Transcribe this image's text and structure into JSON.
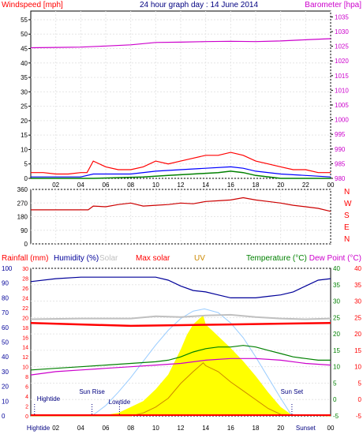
{
  "header": {
    "left_title": "Windspeed [mph]",
    "center_title": "24 hour graph day : 14 June 2014",
    "right_title": "Barometer [hpa]"
  },
  "colors": {
    "wind": "#ff0000",
    "wind_avg": "#0000ff",
    "wind_green": "#008000",
    "barometer": "#cc00cc",
    "humidity": "#000099",
    "solar_max": "#c0c0c0",
    "temperature": "#008000",
    "dew": "#cc00cc",
    "uv": "#ffff00",
    "uv_label": "#cc8800",
    "rain": "#ff0000",
    "sun_curve": "#99ccff",
    "tide": "#000080"
  },
  "chart_data": [
    {
      "type": "line",
      "name": "wind and barometer",
      "x_ticks": [
        "02",
        "04",
        "06",
        "08",
        "10",
        "12",
        "14",
        "16",
        "18",
        "20",
        "22",
        "00"
      ],
      "y_left_ticks": [
        "0",
        "5",
        "10",
        "15",
        "20",
        "25",
        "30",
        "35",
        "40",
        "45",
        "50",
        "55"
      ],
      "y_right_ticks": [
        "980",
        "985",
        "990",
        "995",
        "1000",
        "1005",
        "1010",
        "1015",
        "1020",
        "1025",
        "1030",
        "1035"
      ],
      "ylim_left": [
        0,
        58
      ],
      "ylim_right": [
        980,
        1037
      ],
      "xlim": [
        0,
        24
      ],
      "barometer": {
        "x": [
          0,
          2,
          4,
          6,
          8,
          10,
          12,
          14,
          16,
          18,
          20,
          22,
          24
        ],
        "y": [
          1024.5,
          1024.6,
          1024.7,
          1025.1,
          1025.5,
          1026.3,
          1026.4,
          1026.6,
          1026.7,
          1026.6,
          1026.8,
          1027.2,
          1027.6
        ]
      },
      "wind_gust": {
        "x": [
          0,
          1,
          2,
          3,
          4,
          4.5,
          5,
          6,
          7,
          8,
          9,
          10,
          11,
          12,
          13,
          14,
          15,
          16,
          17,
          18,
          19,
          20,
          21,
          22,
          23,
          24
        ],
        "y": [
          2,
          2,
          1.5,
          1.5,
          2,
          2,
          6,
          4,
          3,
          3,
          4,
          6,
          5,
          6,
          7,
          8,
          8,
          9,
          8,
          6,
          5,
          4,
          3,
          3,
          2,
          2
        ]
      },
      "wind_avg": {
        "x": [
          0,
          2,
          4,
          5,
          6,
          8,
          10,
          12,
          14,
          16,
          17,
          18,
          20,
          22,
          24
        ],
        "y": [
          0.5,
          0.5,
          0.5,
          1.5,
          1.5,
          1.5,
          2.5,
          3,
          3.5,
          4,
          3.5,
          2.5,
          1.5,
          1,
          0.5
        ]
      },
      "wind_green": {
        "x": [
          0,
          5,
          9,
          11,
          13,
          15,
          16,
          17,
          18,
          20,
          24
        ],
        "y": [
          0,
          0,
          0.5,
          1,
          1.5,
          2,
          2.5,
          2,
          1,
          0,
          0
        ]
      }
    },
    {
      "type": "line",
      "name": "wind direction",
      "x_ticks": [
        "02",
        "04",
        "06",
        "08",
        "10",
        "12",
        "14",
        "16",
        "18",
        "20",
        "22",
        "00"
      ],
      "y_ticks": [
        "0",
        "90",
        "180",
        "270",
        "360"
      ],
      "compass_labels": [
        "N",
        "W",
        "S",
        "E",
        "N"
      ],
      "ylim": [
        0,
        360
      ],
      "xlim": [
        0,
        24
      ],
      "series": {
        "x": [
          0,
          2,
          4,
          4.6,
          5,
          6,
          7,
          8,
          9,
          10,
          11,
          12,
          13,
          14,
          15,
          16,
          17,
          18,
          19,
          20,
          21,
          22,
          23,
          24
        ],
        "y": [
          225,
          225,
          225,
          225,
          250,
          245,
          260,
          270,
          250,
          255,
          260,
          270,
          265,
          280,
          285,
          290,
          305,
          290,
          280,
          270,
          255,
          245,
          235,
          215
        ]
      }
    },
    {
      "type": "line",
      "name": "temperature humidity solar",
      "legend": {
        "rainfall": "Rainfall (mm)",
        "humidity": "Humidity (%)",
        "solar": "Solar",
        "max_solar": "Max solar",
        "uv": "UV",
        "temperature": "Temperature (°C)",
        "dew_point": "Dew Point (°C)"
      },
      "x_ticks": [
        "Hightide",
        "02",
        "04",
        "06",
        "08",
        "10",
        "12",
        "14",
        "16",
        "18",
        "20",
        "Sunset",
        "00"
      ],
      "y_hum_ticks": [
        "0",
        "10",
        "20",
        "30",
        "40",
        "50",
        "60",
        "70",
        "80",
        "90",
        "100"
      ],
      "y_rain_ticks": [
        "0",
        "2",
        "4",
        "6",
        "8",
        "10",
        "12",
        "14",
        "16",
        "18",
        "20",
        "22",
        "24",
        "26",
        "28",
        "30"
      ],
      "y_temp_ticks": [
        "-5",
        "0",
        "5",
        "10",
        "15",
        "20",
        "25",
        "30",
        "35",
        "40"
      ],
      "ylim_hum": [
        0,
        100
      ],
      "ylim_temp": [
        -5,
        40
      ],
      "xlim": [
        0,
        24
      ],
      "events": [
        {
          "label": "Hightide",
          "x": 0.3
        },
        {
          "label": "Sun Rise",
          "x": 4.9
        },
        {
          "label": "Lowtide",
          "x": 7.1
        },
        {
          "label": "Sun Set",
          "x": 20.9
        }
      ],
      "humidity": {
        "x": [
          0,
          2,
          4,
          6,
          8,
          9,
          10,
          11,
          12,
          13,
          14,
          15,
          16,
          17,
          18,
          19,
          20,
          21,
          22,
          23,
          24
        ],
        "y": [
          91,
          93,
          94,
          94,
          94,
          94,
          94,
          92,
          88,
          85,
          84,
          82,
          80,
          80,
          80,
          81,
          82,
          84,
          88,
          92,
          93
        ]
      },
      "solar_max_line": {
        "x": [
          0,
          4,
          8,
          10,
          12,
          14,
          16,
          18,
          20,
          22,
          24
        ],
        "y": [
          65.5,
          66,
          66,
          67.5,
          67,
          68,
          68.5,
          67,
          66,
          65.5,
          66
        ]
      },
      "max_solar_red": {
        "x": [
          0,
          4,
          8,
          12,
          16,
          20,
          24
        ],
        "y": [
          63,
          62,
          61,
          61.5,
          62,
          62.5,
          63
        ]
      },
      "temperature": {
        "x": [
          0,
          2,
          4,
          6,
          8,
          10,
          11,
          12,
          13,
          14,
          15,
          16,
          17,
          18,
          19,
          20,
          21,
          22,
          23,
          24
        ],
        "y": [
          9,
          9.5,
          10,
          10.5,
          11,
          11.5,
          12,
          13,
          14.5,
          15.5,
          16,
          16,
          16.5,
          16,
          15,
          14,
          13,
          12.5,
          12,
          12
        ]
      },
      "dew_point": {
        "x": [
          0,
          2,
          4,
          6,
          8,
          10,
          12,
          14,
          16,
          18,
          20,
          22,
          24
        ],
        "y": [
          7.5,
          8.5,
          9,
          9.5,
          10,
          10.5,
          11,
          12,
          12.5,
          12.5,
          12,
          11,
          10.5
        ]
      },
      "solar_radiation_area": {
        "x": [
          0,
          5.5,
          7,
          8,
          9,
          10,
          11,
          12,
          12.5,
          13,
          13.5,
          13.8,
          14,
          14.5,
          15,
          16,
          17,
          18,
          19,
          20,
          21,
          24
        ],
        "y": [
          0,
          0,
          2,
          6,
          10,
          18,
          28,
          45,
          55,
          62,
          66,
          68,
          62,
          58,
          54,
          46,
          37,
          27,
          16,
          6,
          0,
          0
        ]
      },
      "uv_curve": {
        "x": [
          0,
          8,
          9,
          10,
          11,
          12,
          13,
          13.8,
          14,
          15,
          16,
          17,
          18,
          19,
          20,
          24
        ],
        "y": [
          0,
          0,
          2,
          6,
          12,
          22,
          30,
          36,
          34,
          30,
          23,
          17,
          11,
          5,
          1,
          0
        ]
      },
      "sun_curve": {
        "x": [
          4.9,
          6,
          7,
          8,
          9,
          10,
          11,
          12,
          13,
          13.9,
          15,
          16,
          17,
          18,
          19,
          20,
          20.9
        ],
        "y": [
          0,
          7,
          16,
          26,
          37,
          48,
          58,
          66,
          71,
          72.5,
          70,
          63,
          53,
          40,
          26,
          12,
          0
        ]
      }
    }
  ]
}
